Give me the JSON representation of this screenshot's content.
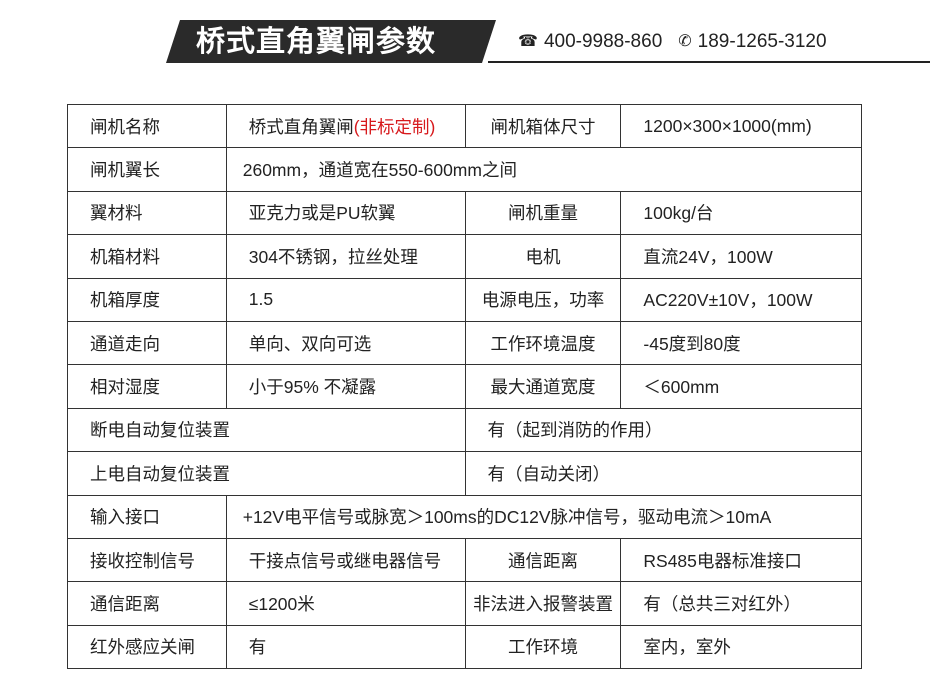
{
  "header": {
    "title": "桥式直角翼闸参数",
    "phone1": "400-9988-860",
    "phone2": "189-1265-3120",
    "phone1_icon": "telephone-icon",
    "phone2_icon": "24h-phone-icon"
  },
  "accent": "#d7191c",
  "rows": [
    {
      "type": "four",
      "cells": [
        "闸机名称",
        "桥式直角翼闸",
        "闸机箱体尺寸",
        "1200×300×1000(mm)"
      ],
      "note": "(非标定制)"
    },
    {
      "type": "wide",
      "cells": [
        "闸机翼长",
        "260mm，通道宽在550-600mm之间"
      ]
    },
    {
      "type": "four",
      "cells": [
        "翼材料",
        "亚克力或是PU软翼",
        "闸机重量",
        "100kg/台"
      ]
    },
    {
      "type": "four",
      "cells": [
        "机箱材料",
        "304不锈钢，拉丝处理",
        "电机",
        "直流24V，100W"
      ]
    },
    {
      "type": "four",
      "cells": [
        "机箱厚度",
        "1.5",
        "电源电压，功率",
        "AC220V±10V，100W"
      ]
    },
    {
      "type": "four",
      "cells": [
        "通道走向",
        "单向、双向可选",
        "工作环境温度",
        "-45度到80度"
      ]
    },
    {
      "type": "four",
      "cells": [
        "相对湿度",
        "小于95% 不凝露",
        "最大通道宽度",
        "＜600mm"
      ]
    },
    {
      "type": "half",
      "cells": [
        "断电自动复位装置",
        "有（起到消防的作用）"
      ]
    },
    {
      "type": "half",
      "cells": [
        "上电自动复位装置",
        "有（自动关闭）"
      ]
    },
    {
      "type": "wide",
      "cells": [
        "输入接口",
        "+12V电平信号或脉宽＞100ms的DC12V脉冲信号，驱动电流＞10mA"
      ]
    },
    {
      "type": "four",
      "cells": [
        "接收控制信号",
        "干接点信号或继电器信号",
        "通信距离",
        "RS485电器标准接口"
      ]
    },
    {
      "type": "four",
      "cells": [
        "通信距离",
        "≤1200米",
        "非法进入报警装置",
        "有（总共三对红外）"
      ]
    },
    {
      "type": "four",
      "cells": [
        "红外感应关闸",
        "有",
        "工作环境",
        "室内，室外"
      ]
    }
  ]
}
